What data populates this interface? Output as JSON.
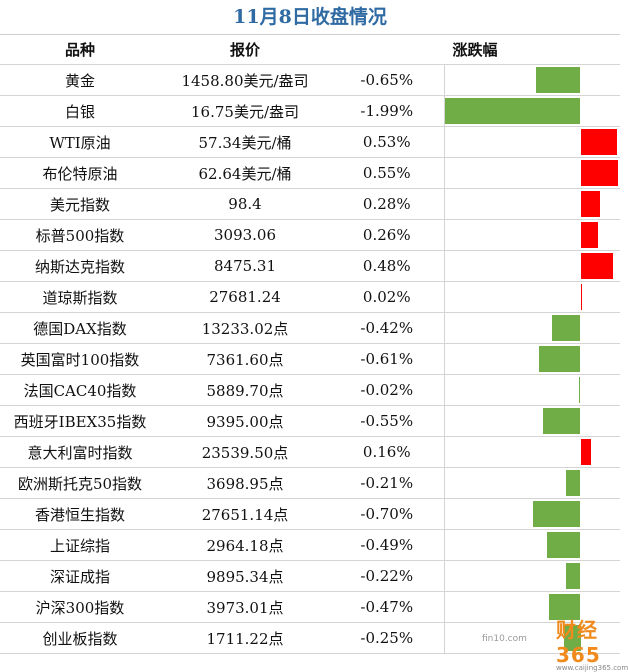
{
  "title": "11月8日收盘情况",
  "headers": {
    "name": "品种",
    "price": "报价",
    "change": "涨跌幅"
  },
  "colors": {
    "up": "#ff0000",
    "down": "#70ad47",
    "title": "#2f6aa3"
  },
  "rows": [
    {
      "name": "黄金",
      "price": "1458.80美元/盎司",
      "pct": "-0.65%",
      "change": -0.65
    },
    {
      "name": "白银",
      "price": "16.75美元/盎司",
      "pct": "-1.99%",
      "change": -1.99
    },
    {
      "name": "WTI原油",
      "price": "57.34美元/桶",
      "pct": "0.53%",
      "change": 0.53
    },
    {
      "name": "布伦特原油",
      "price": "62.64美元/桶",
      "pct": "0.55%",
      "change": 0.55
    },
    {
      "name": "美元指数",
      "price": "98.4",
      "pct": "0.28%",
      "change": 0.28
    },
    {
      "name": "标普500指数",
      "price": "3093.06",
      "pct": "0.26%",
      "change": 0.26
    },
    {
      "name": "纳斯达克指数",
      "price": "8475.31",
      "pct": "0.48%",
      "change": 0.48
    },
    {
      "name": "道琼斯指数",
      "price": "27681.24",
      "pct": "0.02%",
      "change": 0.02
    },
    {
      "name": "德国DAX指数",
      "price": "13233.02点",
      "pct": "-0.42%",
      "change": -0.42
    },
    {
      "name": "英国富时100指数",
      "price": "7361.60点",
      "pct": "-0.61%",
      "change": -0.61
    },
    {
      "name": "法国CAC40指数",
      "price": "5889.70点",
      "pct": "-0.02%",
      "change": -0.02
    },
    {
      "name": "西班牙IBEX35指数",
      "price": "9395.00点",
      "pct": "-0.55%",
      "change": -0.55
    },
    {
      "name": "意大利富时指数",
      "price": "23539.50点",
      "pct": "0.16%",
      "change": 0.16
    },
    {
      "name": "欧洲斯托克50指数",
      "price": "3698.95点",
      "pct": "-0.21%",
      "change": -0.21
    },
    {
      "name": "香港恒生指数",
      "price": "27651.14点",
      "pct": "-0.70%",
      "change": -0.7
    },
    {
      "name": "上证综指",
      "price": "2964.18点",
      "pct": "-0.49%",
      "change": -0.49
    },
    {
      "name": "深证成指",
      "price": "9895.34点",
      "pct": "-0.22%",
      "change": -0.22
    },
    {
      "name": "沪深300指数",
      "price": "3973.01点",
      "pct": "-0.47%",
      "change": -0.47
    },
    {
      "name": "创业板指数",
      "price": "1711.22点",
      "pct": "-0.25%",
      "change": -0.25
    }
  ],
  "watermark": {
    "site": "fin10.com",
    "logo_text": "财经365",
    "logo_sub": "www.caijing365.com"
  }
}
